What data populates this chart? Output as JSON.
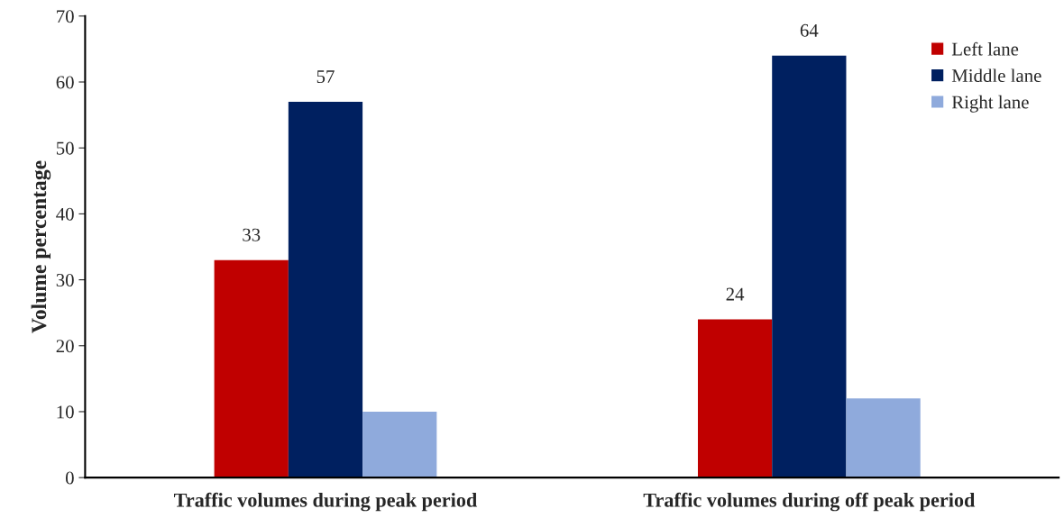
{
  "chart_data": {
    "type": "bar",
    "ylabel": "Volume percentage",
    "categories": [
      "Traffic volumes during peak period",
      "Traffic volumes during off peak period"
    ],
    "series": [
      {
        "name": "Left lane",
        "color": "#c00000",
        "values": [
          33,
          24
        ],
        "value_labels": [
          "33",
          "24"
        ]
      },
      {
        "name": "Middle lane",
        "color": "#002060",
        "values": [
          57,
          64
        ],
        "value_labels": [
          "57",
          "64"
        ]
      },
      {
        "name": "Right lane",
        "color": "#8faadc",
        "values": [
          10,
          12
        ],
        "value_labels": [
          null,
          null
        ]
      }
    ],
    "ylim": [
      0,
      70
    ],
    "yticks": [
      0,
      10,
      20,
      30,
      40,
      50,
      60,
      70
    ],
    "grid": false,
    "legend": "top right"
  }
}
